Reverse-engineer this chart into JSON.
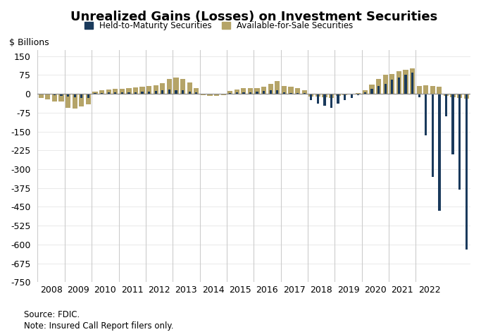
{
  "title": "Unrealized Gains (Losses) on Investment Securities",
  "ylabel": "$ Billions",
  "source_text": "Source: FDIC.",
  "note_text": "Note: Insured Call Report filers only.",
  "htm_color": "#1a3a5c",
  "afs_color": "#b5a468",
  "background_color": "#ffffff",
  "grid_color": "#cccccc",
  "ylim": [
    -750,
    175
  ],
  "yticks": [
    150,
    75,
    0,
    -75,
    -150,
    -225,
    -300,
    -375,
    -450,
    -525,
    -600,
    -675,
    -750
  ],
  "years": [
    "2008",
    "2009",
    "2010",
    "2011",
    "2012",
    "2013",
    "2014",
    "2015",
    "2016",
    "2017",
    "2018",
    "2019",
    "2020",
    "2021",
    "2022"
  ],
  "htm_values": [
    -2,
    -3,
    -5,
    -7,
    -10,
    -14,
    -18,
    -16,
    2,
    3,
    5,
    6,
    6,
    7,
    7,
    8,
    9,
    11,
    13,
    16,
    15,
    13,
    9,
    5,
    -2,
    -4,
    -4,
    -3,
    3,
    6,
    7,
    7,
    8,
    10,
    13,
    15,
    6,
    4,
    3,
    2,
    -25,
    -40,
    -48,
    -55,
    -40,
    -25,
    -18,
    -6,
    6,
    20,
    32,
    40,
    55,
    65,
    75,
    85,
    -15,
    -165,
    -330,
    -465,
    -90,
    -240,
    -380,
    -620
  ],
  "afs_values": [
    -18,
    -22,
    -30,
    -32,
    -55,
    -60,
    -50,
    -42,
    8,
    13,
    17,
    20,
    20,
    22,
    25,
    28,
    30,
    35,
    42,
    60,
    65,
    60,
    45,
    22,
    -5,
    -8,
    -8,
    -6,
    12,
    18,
    22,
    22,
    22,
    28,
    40,
    50,
    32,
    28,
    22,
    14,
    -10,
    -12,
    -14,
    -18,
    -8,
    -5,
    -3,
    2,
    15,
    38,
    60,
    75,
    80,
    90,
    95,
    100,
    30,
    35,
    32,
    28,
    -8,
    -13,
    -16,
    -20
  ]
}
